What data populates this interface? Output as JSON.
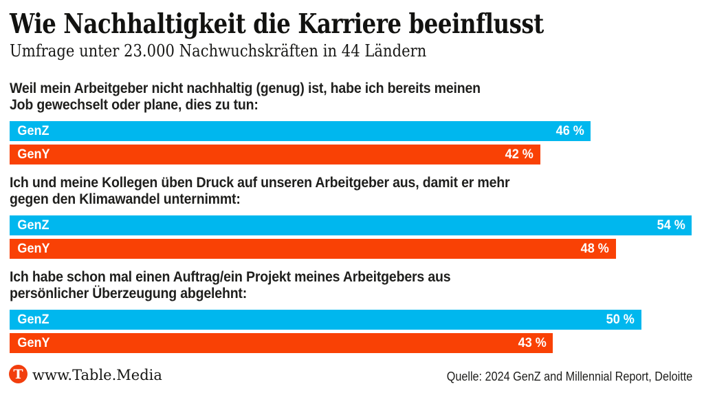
{
  "header": {
    "title": "Wie Nachhaltigkeit die Karriere beeinflusst",
    "subtitle": "Umfrage unter 23.000 Nachwuchskräften in 44 Ländern"
  },
  "chart_data": {
    "type": "bar",
    "orientation": "horizontal",
    "unit": "%",
    "axis_max": 54,
    "grid": false,
    "legend_position": "inside-bars",
    "series": [
      {
        "name": "GenZ",
        "color": "#00b7ee"
      },
      {
        "name": "GenY",
        "color": "#f94105"
      }
    ],
    "groups": [
      {
        "question": "Weil mein Arbeitgeber nicht nachhaltig (genug) ist, habe ich bereits meinen\nJob gewechselt oder plane, dies zu tun:",
        "values": [
          46,
          42
        ],
        "value_labels": [
          "46 %",
          "42 %"
        ]
      },
      {
        "question": "Ich und meine Kollegen üben Druck auf unseren Arbeitgeber aus, damit er mehr\ngegen den Klimawandel unternimmt:",
        "values": [
          54,
          48
        ],
        "value_labels": [
          "54 %",
          "48 %"
        ]
      },
      {
        "question": "Ich habe schon mal einen Auftrag/ein Projekt meines Arbeitgebers aus\npersönlicher Überzeugung abgelehnt:",
        "values": [
          50,
          43
        ],
        "value_labels": [
          "50 %",
          "43 %"
        ]
      }
    ]
  },
  "footer": {
    "logo_letter": "T",
    "site": "www.Table.Media",
    "source": "Quelle: 2024 GenZ and Millennial Report, Deloitte"
  }
}
